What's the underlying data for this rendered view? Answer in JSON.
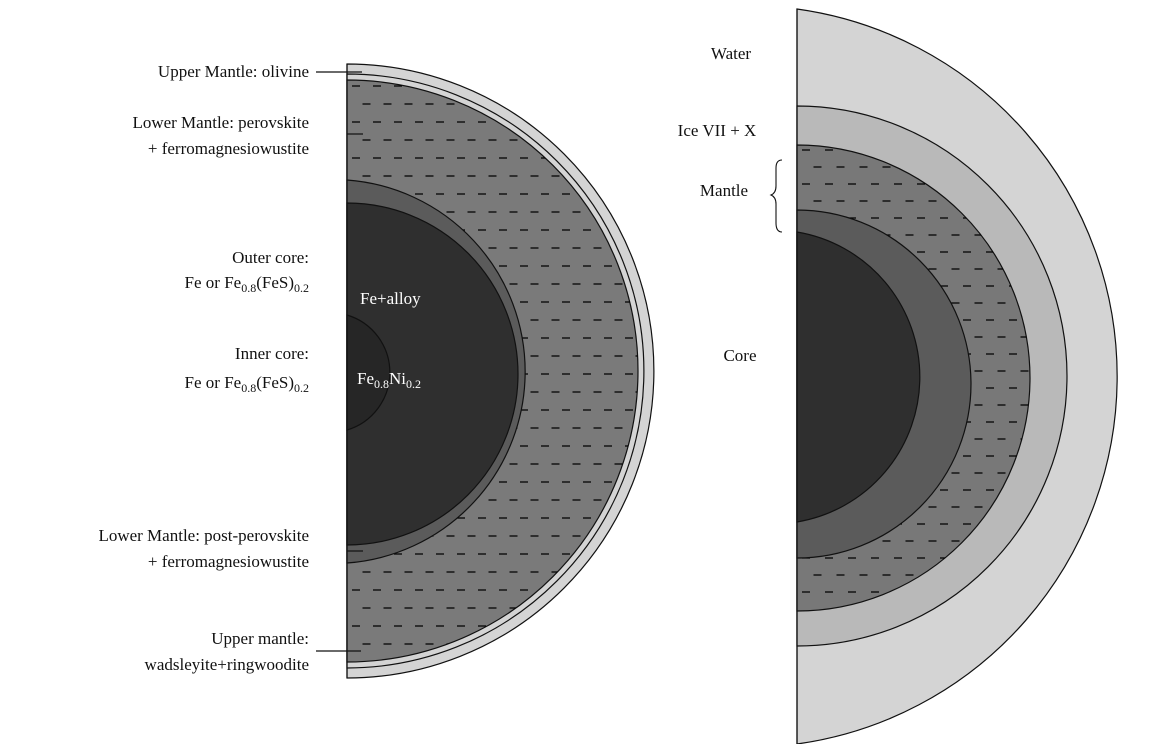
{
  "earth": {
    "labels": {
      "upper_mantle_olivine": "Upper Mantle:  olivine",
      "lower_mantle_perovskite_1": "Lower Mantle:  perovskite",
      "lower_mantle_perovskite_2": "+ ferromagnesiowustite",
      "outer_core_1": "Outer core:",
      "outer_core_2": "Fe or Fe0.8(FeS)0.2",
      "inner_core_1": "Inner core:",
      "inner_core_2": "Fe or Fe0.8(FeS)0.2",
      "lower_mantle_post_1": "Lower Mantle:  post-perovskite",
      "lower_mantle_post_2": "+ ferromagnesiowustite",
      "upper_mantle_ws_1": "Upper mantle:",
      "upper_mantle_ws_2": "wadsleyite+ringwoodite",
      "fe_alloy": "Fe+alloy",
      "fe_ni": "Fe0.8Ni0.2"
    },
    "colors": {
      "upper_mantle": "#d4d4d4",
      "lower_mantle": "#7a7a7a",
      "transition": "#5b5b5b",
      "outer_core": "#2f2f2f",
      "inner_core": "#262626"
    }
  },
  "water_world": {
    "labels": {
      "water": "Water",
      "ice": "Ice VII + X",
      "mantle": "Mantle",
      "core": "Core"
    },
    "colors": {
      "water": "#d4d4d4",
      "ice": "#b9b9b9",
      "mantle": "#787878",
      "inner_mantle": "#5b5b5b",
      "core": "#2f2f2f"
    }
  }
}
